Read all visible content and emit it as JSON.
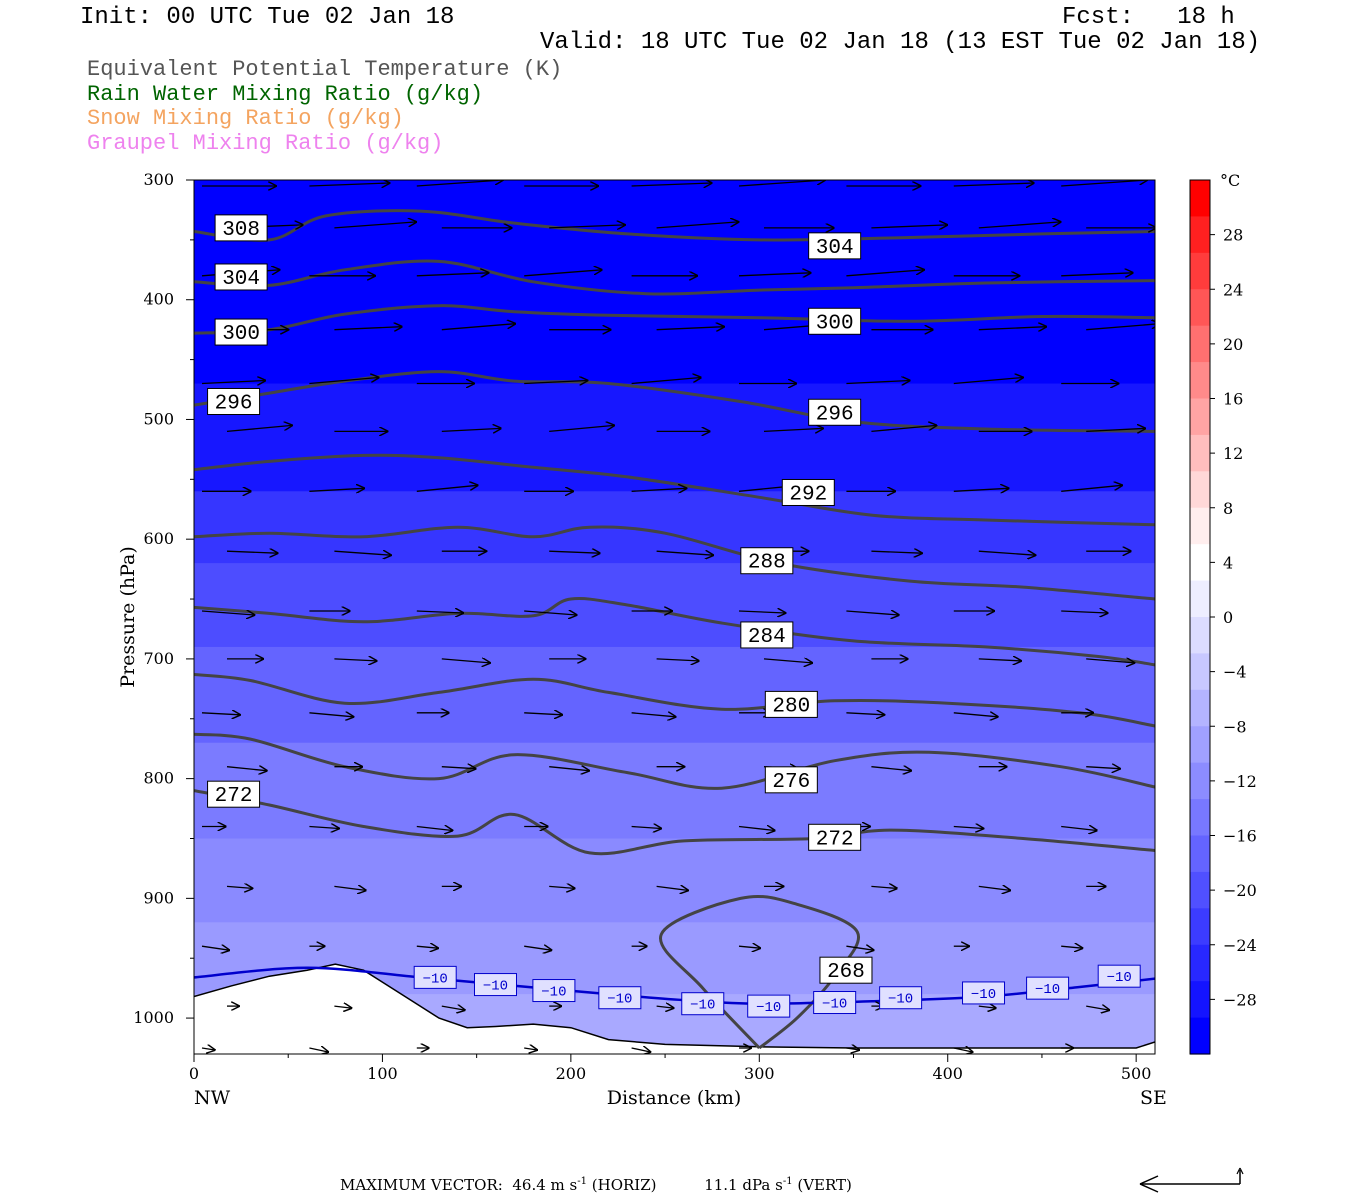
{
  "header": {
    "init": "Init: 00 UTC Tue 02 Jan 18",
    "fcst": "Fcst:   18 h",
    "valid": "Valid: 18 UTC Tue 02 Jan 18 (13 EST Tue 02 Jan 18)"
  },
  "legend": [
    {
      "label": "Equivalent Potential Temperature (K)",
      "color": "#555555"
    },
    {
      "label": "Rain Water Mixing Ratio (g/kg)",
      "color": "#006400"
    },
    {
      "label": "Snow Mixing Ratio (g/kg)",
      "color": "#f4a460"
    },
    {
      "label": "Graupel Mixing Ratio (g/kg)",
      "color": "#ee82ee"
    }
  ],
  "footer": {
    "max_vector_label": "MAXIMUM VECTOR:",
    "horiz_value": "46.4 m s",
    "horiz_exp": "-1",
    "horiz_unit": "(HORIZ)",
    "vert_value": "11.1 dPa s",
    "vert_exp": "-1",
    "vert_unit": "(VERT)"
  },
  "chart_data": {
    "type": "cross-section",
    "title": "",
    "xlabel": "Distance (km)",
    "ylabel": "Pressure (hPa)",
    "xlim": [
      0,
      510
    ],
    "ylim": [
      1030,
      300
    ],
    "x_ticks": [
      0,
      100,
      200,
      300,
      400,
      500
    ],
    "y_ticks": [
      300,
      400,
      500,
      600,
      700,
      800,
      900,
      1000
    ],
    "x_end_labels": {
      "left": "NW",
      "right": "SE"
    },
    "colorbar": {
      "unit": "°C",
      "tick_labels": [
        "28",
        "24",
        "20",
        "16",
        "12",
        "8",
        "4",
        "0",
        "−4",
        "−8",
        "−12",
        "−16",
        "−20",
        "−24",
        "−28"
      ],
      "tick_values": [
        28,
        24,
        20,
        16,
        12,
        8,
        4,
        0,
        -4,
        -8,
        -12,
        -16,
        -20,
        -24,
        -28
      ],
      "colors_top_to_bottom": [
        "#ff0000",
        "#ff2020",
        "#ff3c3c",
        "#ff5656",
        "#ff7070",
        "#ff8a8a",
        "#ffa4a4",
        "#ffbebe",
        "#ffd8d8",
        "#ffeeee",
        "#ffffff",
        "#eeeeff",
        "#dcdcff",
        "#c8c8ff",
        "#b4b4ff",
        "#a0a0ff",
        "#8c8cff",
        "#7878ff",
        "#6464ff",
        "#5050ff",
        "#3c3cff",
        "#2828ff",
        "#1414ff",
        "#0000ff"
      ]
    },
    "theta_e_contours": [
      {
        "value": 308,
        "label": "308",
        "points": [
          [
            0,
            343
          ],
          [
            40,
            350
          ],
          [
            70,
            330
          ],
          [
            120,
            326
          ],
          [
            170,
            336
          ],
          [
            230,
            345
          ],
          [
            300,
            350
          ],
          [
            380,
            348
          ],
          [
            450,
            345
          ],
          [
            510,
            343
          ]
        ]
      },
      {
        "value": 304,
        "label": "304",
        "points": [
          [
            0,
            385
          ],
          [
            40,
            388
          ],
          [
            80,
            375
          ],
          [
            130,
            368
          ],
          [
            180,
            385
          ],
          [
            240,
            395
          ],
          [
            300,
            392
          ],
          [
            350,
            390
          ],
          [
            420,
            386
          ],
          [
            510,
            384
          ]
        ]
      },
      {
        "value": 300,
        "label": "300",
        "points": [
          [
            0,
            428
          ],
          [
            40,
            425
          ],
          [
            80,
            412
          ],
          [
            130,
            405
          ],
          [
            170,
            410
          ],
          [
            220,
            413
          ],
          [
            300,
            415
          ],
          [
            380,
            418
          ],
          [
            450,
            414
          ],
          [
            510,
            415
          ]
        ]
      },
      {
        "value": 296,
        "label": "296",
        "points": [
          [
            0,
            488
          ],
          [
            40,
            478
          ],
          [
            80,
            468
          ],
          [
            130,
            460
          ],
          [
            170,
            468
          ],
          [
            220,
            470
          ],
          [
            290,
            485
          ],
          [
            350,
            502
          ],
          [
            420,
            508
          ],
          [
            510,
            510
          ]
        ]
      },
      {
        "value": 292,
        "label": "292",
        "points": [
          [
            0,
            542
          ],
          [
            40,
            535
          ],
          [
            90,
            530
          ],
          [
            130,
            532
          ],
          [
            180,
            540
          ],
          [
            230,
            548
          ],
          [
            300,
            565
          ],
          [
            360,
            580
          ],
          [
            420,
            584
          ],
          [
            510,
            588
          ]
        ]
      },
      {
        "value": 288,
        "label": "288",
        "points": [
          [
            0,
            598
          ],
          [
            40,
            595
          ],
          [
            90,
            598
          ],
          [
            140,
            590
          ],
          [
            180,
            598
          ],
          [
            210,
            590
          ],
          [
            250,
            595
          ],
          [
            310,
            620
          ],
          [
            380,
            635
          ],
          [
            440,
            640
          ],
          [
            510,
            650
          ]
        ]
      },
      {
        "value": 284,
        "label": "284",
        "points": [
          [
            0,
            657
          ],
          [
            40,
            662
          ],
          [
            90,
            669
          ],
          [
            140,
            662
          ],
          [
            180,
            664
          ],
          [
            200,
            650
          ],
          [
            230,
            655
          ],
          [
            280,
            670
          ],
          [
            350,
            685
          ],
          [
            420,
            690
          ],
          [
            480,
            698
          ],
          [
            510,
            705
          ]
        ]
      },
      {
        "value": 280,
        "label": "280",
        "points": [
          [
            0,
            713
          ],
          [
            30,
            718
          ],
          [
            80,
            737
          ],
          [
            130,
            728
          ],
          [
            180,
            717
          ],
          [
            220,
            728
          ],
          [
            280,
            742
          ],
          [
            340,
            735
          ],
          [
            400,
            737
          ],
          [
            470,
            745
          ],
          [
            510,
            756
          ]
        ]
      },
      {
        "value": 276,
        "label": "276",
        "points": [
          [
            0,
            763
          ],
          [
            30,
            767
          ],
          [
            80,
            790
          ],
          [
            130,
            800
          ],
          [
            170,
            780
          ],
          [
            230,
            795
          ],
          [
            280,
            808
          ],
          [
            340,
            785
          ],
          [
            390,
            778
          ],
          [
            460,
            790
          ],
          [
            510,
            807
          ]
        ]
      },
      {
        "value": 272,
        "label": "272",
        "points": [
          [
            0,
            810
          ],
          [
            40,
            822
          ],
          [
            90,
            840
          ],
          [
            140,
            848
          ],
          [
            170,
            830
          ],
          [
            210,
            862
          ],
          [
            260,
            852
          ],
          [
            330,
            850
          ],
          [
            370,
            843
          ],
          [
            440,
            850
          ],
          [
            510,
            860
          ]
        ]
      },
      {
        "value": 268,
        "label": "268",
        "points": [
          [
            300,
            1025
          ],
          [
            270,
            975
          ],
          [
            248,
            930
          ],
          [
            290,
            900
          ],
          [
            320,
            905
          ],
          [
            352,
            928
          ],
          [
            340,
            965
          ],
          [
            320,
            1000
          ],
          [
            300,
            1025
          ]
        ]
      }
    ],
    "contour_label_positions": [
      {
        "label": "308",
        "x": 25,
        "p": 340
      },
      {
        "label": "304",
        "x": 25,
        "p": 381
      },
      {
        "label": "300",
        "x": 25,
        "p": 427
      },
      {
        "label": "296",
        "x": 21,
        "p": 485
      },
      {
        "label": "304",
        "x": 340,
        "p": 355
      },
      {
        "label": "300",
        "x": 340,
        "p": 418
      },
      {
        "label": "296",
        "x": 340,
        "p": 494
      },
      {
        "label": "292",
        "x": 326,
        "p": 561
      },
      {
        "label": "288",
        "x": 304,
        "p": 618
      },
      {
        "label": "284",
        "x": 304,
        "p": 680
      },
      {
        "label": "280",
        "x": 317,
        "p": 738
      },
      {
        "label": "276",
        "x": 317,
        "p": 801
      },
      {
        "label": "272",
        "x": 21,
        "p": 813
      },
      {
        "label": "272",
        "x": 340,
        "p": 849
      },
      {
        "label": "268",
        "x": 346,
        "p": 960
      }
    ],
    "minus10_isotherm": {
      "label": "−10",
      "points": [
        [
          0,
          966
        ],
        [
          60,
          958
        ],
        [
          120,
          966
        ],
        [
          170,
          973
        ],
        [
          220,
          980
        ],
        [
          260,
          985
        ],
        [
          300,
          988
        ],
        [
          360,
          986
        ],
        [
          420,
          982
        ],
        [
          470,
          974
        ],
        [
          510,
          967
        ]
      ]
    },
    "minus10_label_positions": [
      {
        "x": 128,
        "p": 966
      },
      {
        "x": 160,
        "p": 972
      },
      {
        "x": 191,
        "p": 977
      },
      {
        "x": 226,
        "p": 983
      },
      {
        "x": 270,
        "p": 988
      },
      {
        "x": 305,
        "p": 990
      },
      {
        "x": 340,
        "p": 987
      },
      {
        "x": 375,
        "p": 983
      },
      {
        "x": 419,
        "p": 979
      },
      {
        "x": 453,
        "p": 975
      },
      {
        "x": 491,
        "p": 965
      }
    ],
    "terrain": [
      [
        0,
        982
      ],
      [
        20,
        973
      ],
      [
        40,
        965
      ],
      [
        60,
        960
      ],
      [
        75,
        955
      ],
      [
        90,
        960
      ],
      [
        110,
        980
      ],
      [
        130,
        1000
      ],
      [
        145,
        1008
      ],
      [
        160,
        1007
      ],
      [
        180,
        1005
      ],
      [
        200,
        1008
      ],
      [
        220,
        1018
      ],
      [
        250,
        1022
      ],
      [
        300,
        1024
      ],
      [
        350,
        1025
      ],
      [
        400,
        1025
      ],
      [
        450,
        1025
      ],
      [
        500,
        1025
      ],
      [
        510,
        1020
      ]
    ],
    "temperature_shading_levels": [
      {
        "p": 300,
        "t": -32
      },
      {
        "p": 470,
        "t": -29
      },
      {
        "p": 560,
        "t": -25
      },
      {
        "p": 620,
        "t": -22
      },
      {
        "p": 690,
        "t": -19
      },
      {
        "p": 770,
        "t": -16
      },
      {
        "p": 850,
        "t": -14
      },
      {
        "p": 920,
        "t": -12
      },
      {
        "p": 980,
        "t": -10
      },
      {
        "p": 1030,
        "t": -8
      }
    ],
    "wind_vectors": {
      "x_columns": [
        0,
        57,
        114,
        171,
        228,
        285,
        342,
        399,
        456
      ],
      "p_rows": [
        305,
        340,
        380,
        425,
        470,
        510,
        560,
        610,
        660,
        700,
        745,
        790,
        840,
        890,
        940,
        990,
        1025
      ],
      "u_scale_note": "arrow length proportional to horizontal wind"
    }
  }
}
